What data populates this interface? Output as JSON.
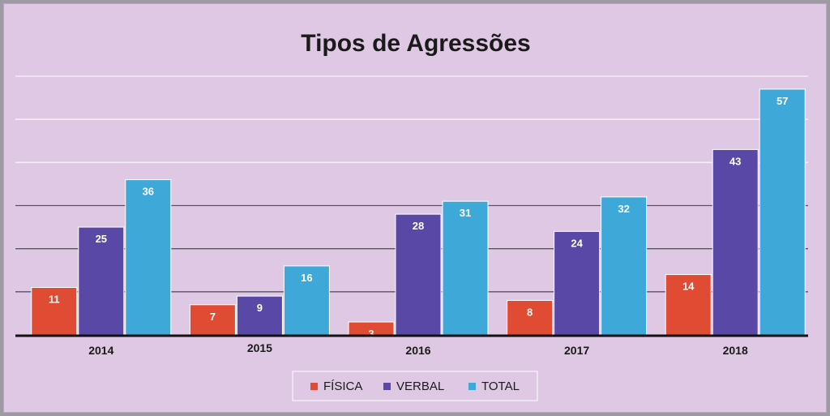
{
  "chart_data": {
    "type": "bar",
    "title": "Tipos de Agressões",
    "categories": [
      "2014",
      "2015",
      "2016",
      "2017",
      "2018"
    ],
    "series": [
      {
        "name": "FÍSICA",
        "color": "#e04b33",
        "values": [
          11,
          7,
          3,
          8,
          14
        ]
      },
      {
        "name": "VERBAL",
        "color": "#5a48a6",
        "values": [
          25,
          9,
          28,
          24,
          43
        ]
      },
      {
        "name": "TOTAL",
        "color": "#3ea8d8",
        "values": [
          36,
          16,
          31,
          32,
          57
        ]
      }
    ],
    "ylim": [
      0,
      60
    ],
    "gridline_step": 10,
    "grid": true,
    "legend": "bottom-center",
    "data_labels": true
  }
}
